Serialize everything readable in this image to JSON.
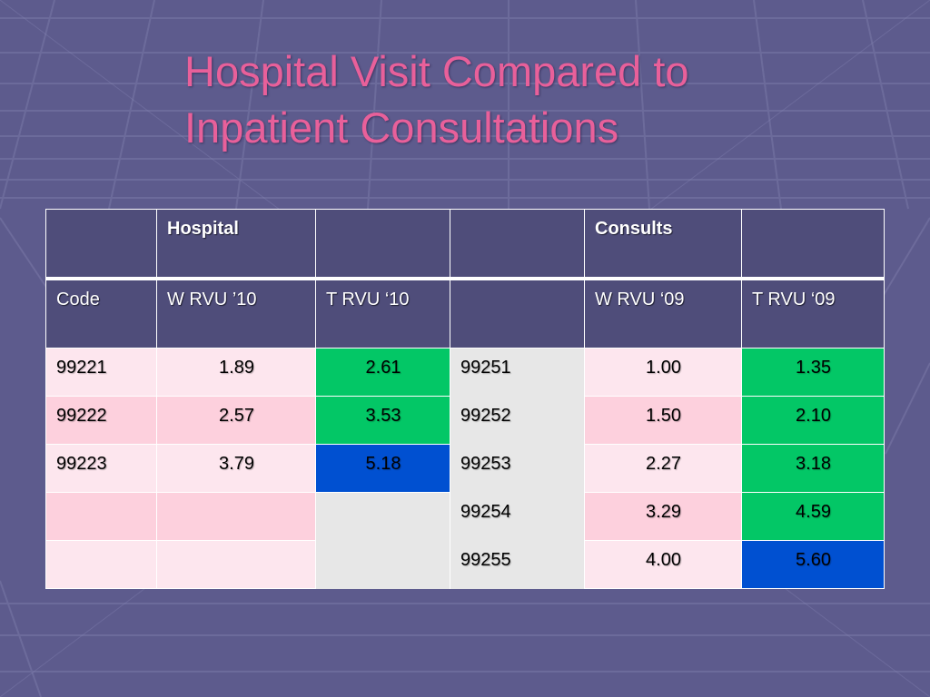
{
  "slide": {
    "title_line1": "Hospital Visit Compared to",
    "title_line2": "Inpatient Consultations",
    "colors": {
      "background": "#5d5b8d",
      "title": "#e8609a",
      "header": "#4f4d7a",
      "pink_light": "#fde6ee",
      "pink": "#fdd0dd",
      "green": "#03c766",
      "blue": "#0050d1",
      "gray": "#e7e7e7"
    }
  },
  "table": {
    "group_headers": [
      "",
      "Hospital",
      "",
      "",
      "Consults",
      ""
    ],
    "column_headers": [
      "Code",
      "W RVU ’10",
      "T RVU ‘10",
      "",
      "W RVU ‘09",
      "T RVU ‘09"
    ],
    "rows": [
      [
        "99221",
        "1.89",
        "2.61",
        "99251",
        "1.00",
        "1.35"
      ],
      [
        "99222",
        "2.57",
        "3.53",
        "99252",
        "1.50",
        "2.10"
      ],
      [
        "99223",
        "3.79",
        "5.18",
        "99253",
        "2.27",
        "3.18"
      ],
      [
        "",
        "",
        "",
        "99254",
        "3.29",
        "4.59"
      ],
      [
        "",
        "",
        "",
        "99255",
        "4.00",
        "5.60"
      ]
    ]
  }
}
